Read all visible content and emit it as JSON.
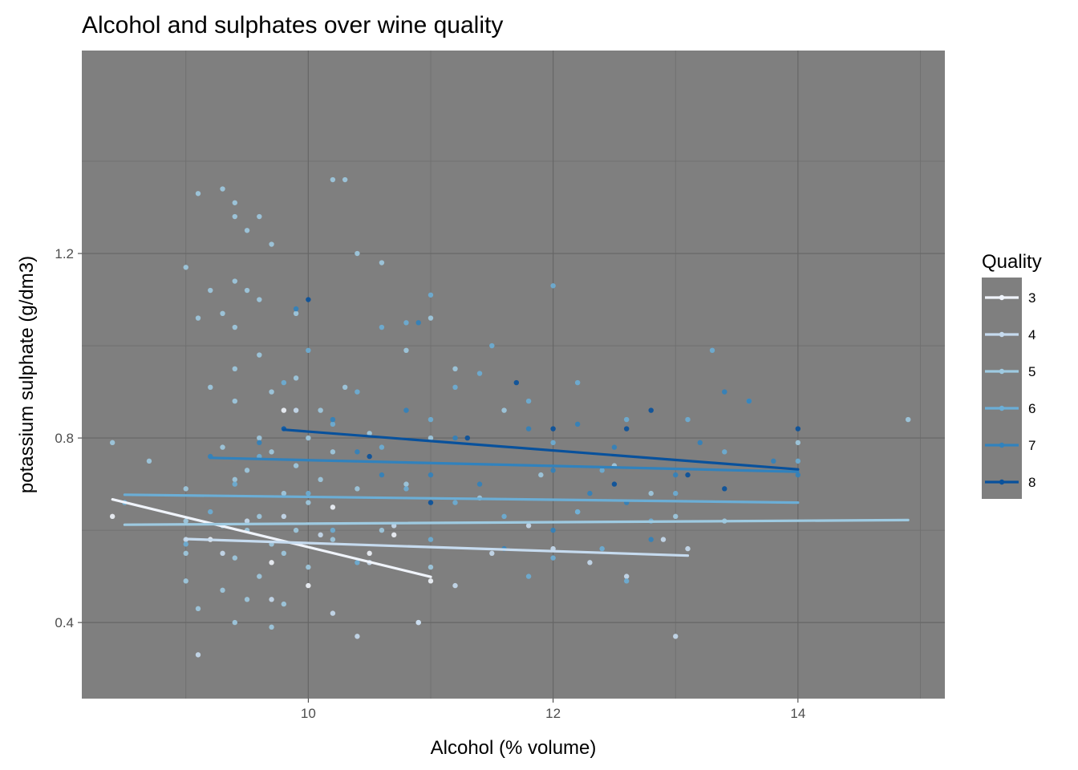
{
  "chart_data": {
    "type": "scatter",
    "title": "Alcohol and sulphates over wine quality",
    "xlabel": "Alcohol (% volume)",
    "ylabel": "potassium sulphate (g/dm3)",
    "xlim": [
      8.15,
      15.2
    ],
    "ylim": [
      0.235,
      1.64
    ],
    "xticks": [
      10,
      12,
      14
    ],
    "yticks": [
      0.4,
      0.8,
      1.2
    ],
    "grid": true,
    "panel_background": "#7f7f7f",
    "legend": {
      "title": "Quality",
      "placement": "right",
      "entries": [
        "3",
        "4",
        "5",
        "6",
        "7",
        "8"
      ]
    },
    "series": [
      {
        "name": "3",
        "color": "#f0f4fb",
        "points": [
          [
            8.4,
            0.63
          ],
          [
            9.2,
            0.58
          ],
          [
            9.7,
            0.53
          ],
          [
            9.8,
            0.86
          ],
          [
            10.0,
            0.48
          ],
          [
            10.2,
            0.65
          ],
          [
            10.5,
            0.55
          ],
          [
            10.7,
            0.59
          ],
          [
            10.9,
            0.4
          ],
          [
            11.0,
            0.49
          ]
        ],
        "trend": [
          [
            8.4,
            0.667
          ],
          [
            11.0,
            0.499
          ]
        ]
      },
      {
        "name": "4",
        "color": "#c6dbef",
        "points": [
          [
            9.0,
            0.58
          ],
          [
            9.1,
            0.33
          ],
          [
            9.3,
            0.55
          ],
          [
            9.5,
            0.62
          ],
          [
            9.7,
            0.45
          ],
          [
            9.8,
            0.63
          ],
          [
            9.9,
            0.86
          ],
          [
            10.1,
            0.59
          ],
          [
            10.2,
            0.42
          ],
          [
            10.4,
            0.37
          ],
          [
            10.5,
            0.53
          ],
          [
            10.7,
            0.61
          ],
          [
            10.9,
            0.4
          ],
          [
            11.2,
            0.48
          ],
          [
            11.5,
            0.55
          ],
          [
            11.8,
            0.61
          ],
          [
            12.0,
            0.56
          ],
          [
            12.3,
            0.53
          ],
          [
            12.6,
            0.5
          ],
          [
            12.9,
            0.58
          ],
          [
            13.0,
            0.37
          ],
          [
            13.1,
            0.56
          ]
        ],
        "trend": [
          [
            9.0,
            0.581
          ],
          [
            13.1,
            0.545
          ]
        ]
      },
      {
        "name": "5",
        "color": "#9ecae1",
        "points": [
          [
            8.4,
            0.79
          ],
          [
            8.7,
            0.75
          ],
          [
            9.0,
            1.17
          ],
          [
            9.0,
            0.69
          ],
          [
            9.0,
            0.62
          ],
          [
            9.0,
            0.55
          ],
          [
            9.0,
            0.49
          ],
          [
            9.1,
            1.33
          ],
          [
            9.1,
            1.06
          ],
          [
            9.1,
            0.43
          ],
          [
            9.2,
            1.12
          ],
          [
            9.2,
            0.91
          ],
          [
            9.3,
            1.34
          ],
          [
            9.3,
            1.07
          ],
          [
            9.3,
            0.78
          ],
          [
            9.3,
            0.61
          ],
          [
            9.3,
            0.47
          ],
          [
            9.4,
            1.31
          ],
          [
            9.4,
            1.28
          ],
          [
            9.4,
            1.14
          ],
          [
            9.4,
            1.04
          ],
          [
            9.4,
            0.95
          ],
          [
            9.4,
            0.88
          ],
          [
            9.4,
            0.71
          ],
          [
            9.4,
            0.54
          ],
          [
            9.4,
            0.4
          ],
          [
            9.5,
            1.25
          ],
          [
            9.5,
            1.12
          ],
          [
            9.5,
            0.73
          ],
          [
            9.5,
            0.6
          ],
          [
            9.5,
            0.45
          ],
          [
            9.6,
            1.28
          ],
          [
            9.6,
            1.1
          ],
          [
            9.6,
            0.98
          ],
          [
            9.6,
            0.8
          ],
          [
            9.6,
            0.63
          ],
          [
            9.6,
            0.5
          ],
          [
            9.7,
            1.22
          ],
          [
            9.7,
            0.9
          ],
          [
            9.7,
            0.77
          ],
          [
            9.7,
            0.57
          ],
          [
            9.7,
            0.39
          ],
          [
            9.8,
            0.82
          ],
          [
            9.8,
            0.68
          ],
          [
            9.8,
            0.55
          ],
          [
            9.8,
            0.44
          ],
          [
            9.9,
            1.07
          ],
          [
            9.9,
            0.93
          ],
          [
            9.9,
            0.74
          ],
          [
            9.9,
            0.6
          ],
          [
            10.0,
            0.8
          ],
          [
            10.0,
            0.66
          ],
          [
            10.0,
            0.52
          ],
          [
            10.1,
            0.86
          ],
          [
            10.1,
            0.71
          ],
          [
            10.2,
            1.36
          ],
          [
            10.2,
            0.77
          ],
          [
            10.2,
            0.58
          ],
          [
            10.3,
            1.36
          ],
          [
            10.3,
            0.91
          ],
          [
            10.4,
            1.2
          ],
          [
            10.4,
            0.69
          ],
          [
            10.5,
            0.81
          ],
          [
            10.6,
            1.18
          ],
          [
            10.6,
            0.6
          ],
          [
            10.8,
            0.99
          ],
          [
            10.8,
            0.7
          ],
          [
            11.0,
            1.06
          ],
          [
            11.0,
            0.8
          ],
          [
            11.0,
            0.52
          ],
          [
            11.2,
            0.95
          ],
          [
            11.4,
            0.67
          ],
          [
            11.6,
            0.86
          ],
          [
            11.9,
            0.72
          ],
          [
            12.2,
            0.64
          ],
          [
            12.5,
            0.74
          ],
          [
            12.8,
            0.68
          ],
          [
            13.0,
            0.63
          ],
          [
            13.4,
            0.62
          ],
          [
            14.0,
            0.79
          ],
          [
            14.9,
            0.84
          ]
        ],
        "trend": [
          [
            8.5,
            0.612
          ],
          [
            14.9,
            0.622
          ]
        ]
      },
      {
        "name": "6",
        "color": "#6baed6",
        "points": [
          [
            8.5,
            0.66
          ],
          [
            9.0,
            0.57
          ],
          [
            9.2,
            0.64
          ],
          [
            9.4,
            0.7
          ],
          [
            9.6,
            0.76
          ],
          [
            9.8,
            0.92
          ],
          [
            10.0,
            0.99
          ],
          [
            10.0,
            0.68
          ],
          [
            10.2,
            0.83
          ],
          [
            10.2,
            0.6
          ],
          [
            10.4,
            0.9
          ],
          [
            10.4,
            0.53
          ],
          [
            10.6,
            1.04
          ],
          [
            10.6,
            0.78
          ],
          [
            10.8,
            1.05
          ],
          [
            10.8,
            0.69
          ],
          [
            11.0,
            1.11
          ],
          [
            11.0,
            0.84
          ],
          [
            11.0,
            0.58
          ],
          [
            11.2,
            0.91
          ],
          [
            11.2,
            0.66
          ],
          [
            11.4,
            0.94
          ],
          [
            11.5,
            1.0
          ],
          [
            11.6,
            0.63
          ],
          [
            11.8,
            0.88
          ],
          [
            11.8,
            0.5
          ],
          [
            12.0,
            1.13
          ],
          [
            12.0,
            0.79
          ],
          [
            12.0,
            0.54
          ],
          [
            12.2,
            0.92
          ],
          [
            12.2,
            0.64
          ],
          [
            12.4,
            0.73
          ],
          [
            12.4,
            0.56
          ],
          [
            12.6,
            0.84
          ],
          [
            12.6,
            0.49
          ],
          [
            12.8,
            0.62
          ],
          [
            13.0,
            0.68
          ],
          [
            13.1,
            0.84
          ],
          [
            13.3,
            0.99
          ],
          [
            13.4,
            0.77
          ],
          [
            13.6,
            0.88
          ],
          [
            14.0,
            0.75
          ]
        ],
        "trend": [
          [
            8.5,
            0.677
          ],
          [
            14.0,
            0.66
          ]
        ]
      },
      {
        "name": "7",
        "color": "#3182bd",
        "points": [
          [
            9.2,
            0.76
          ],
          [
            9.6,
            0.79
          ],
          [
            9.9,
            1.08
          ],
          [
            10.2,
            0.84
          ],
          [
            10.4,
            0.77
          ],
          [
            10.6,
            0.72
          ],
          [
            10.8,
            0.86
          ],
          [
            10.9,
            1.05
          ],
          [
            11.0,
            0.72
          ],
          [
            11.2,
            0.8
          ],
          [
            11.4,
            0.7
          ],
          [
            11.6,
            0.56
          ],
          [
            11.8,
            0.82
          ],
          [
            12.0,
            0.73
          ],
          [
            12.0,
            0.6
          ],
          [
            12.2,
            0.83
          ],
          [
            12.3,
            0.68
          ],
          [
            12.5,
            0.78
          ],
          [
            12.6,
            0.66
          ],
          [
            12.8,
            0.58
          ],
          [
            13.0,
            0.72
          ],
          [
            13.2,
            0.79
          ],
          [
            13.4,
            0.9
          ],
          [
            13.6,
            0.88
          ],
          [
            13.8,
            0.75
          ],
          [
            14.0,
            0.72
          ]
        ],
        "trend": [
          [
            9.2,
            0.757
          ],
          [
            14.0,
            0.727
          ]
        ]
      },
      {
        "name": "8",
        "color": "#08519c",
        "points": [
          [
            9.8,
            0.82
          ],
          [
            10.0,
            1.1
          ],
          [
            10.5,
            0.76
          ],
          [
            11.0,
            0.66
          ],
          [
            11.3,
            0.8
          ],
          [
            11.7,
            0.92
          ],
          [
            12.0,
            0.82
          ],
          [
            12.5,
            0.7
          ],
          [
            12.6,
            0.82
          ],
          [
            12.8,
            0.86
          ],
          [
            13.1,
            0.72
          ],
          [
            13.4,
            0.69
          ],
          [
            14.0,
            0.82
          ]
        ],
        "trend": [
          [
            9.8,
            0.818
          ],
          [
            14.0,
            0.732
          ]
        ]
      }
    ]
  }
}
